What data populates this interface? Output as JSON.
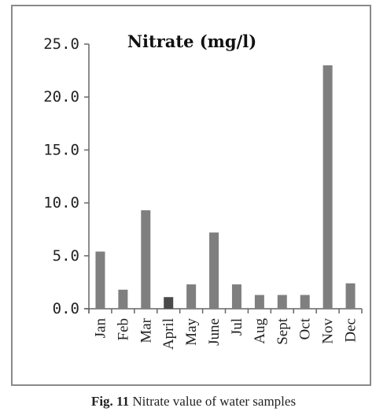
{
  "chart_data": {
    "type": "bar",
    "title": "Nitrate (mg/l)",
    "categories": [
      "Jan",
      "Feb",
      "Mar",
      "April",
      "May",
      "June",
      "Jul",
      "Aug",
      "Sept",
      "Oct",
      "Nov",
      "Dec"
    ],
    "values": [
      5.4,
      1.8,
      9.3,
      1.1,
      2.3,
      7.2,
      2.3,
      1.3,
      1.3,
      1.3,
      23.0,
      2.4
    ],
    "ylim": [
      0,
      25
    ],
    "yticks": [
      "0.0",
      "5.0",
      "10.0",
      "15.0",
      "20.0",
      "25.0"
    ],
    "grid": false,
    "legend": "none",
    "bar_color": "#7f7f7f",
    "highlight_bar_color": "#4a4a4a",
    "highlight_index": 3
  },
  "caption": {
    "label": "Fig. 11",
    "text": "Nitrate value of water samples"
  }
}
